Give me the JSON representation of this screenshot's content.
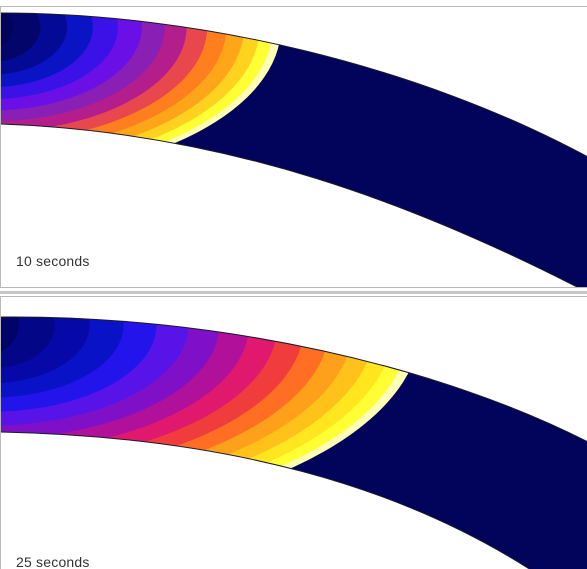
{
  "panels": [
    {
      "time_label": "10 seconds",
      "contour_colors": [
        "#ffffb5",
        "#ffff33",
        "#ffd21f",
        "#ffa51a",
        "#ff7f1f",
        "#e8474d",
        "#b31d8c",
        "#8a1fb5",
        "#6a10e6",
        "#3a12e8",
        "#0a14c4",
        "#050a96",
        "#03056b",
        "#02035a"
      ]
    },
    {
      "time_label": "25 seconds",
      "contour_colors": [
        "#ffffb5",
        "#ffff33",
        "#ffe61f",
        "#ffc21a",
        "#ffa01a",
        "#ff6e23",
        "#f03c3c",
        "#e0186e",
        "#b0109a",
        "#8010c8",
        "#5814e8",
        "#2414ec",
        "#0a12c8",
        "#0608a8",
        "#040688",
        "#02036a"
      ]
    }
  ]
}
